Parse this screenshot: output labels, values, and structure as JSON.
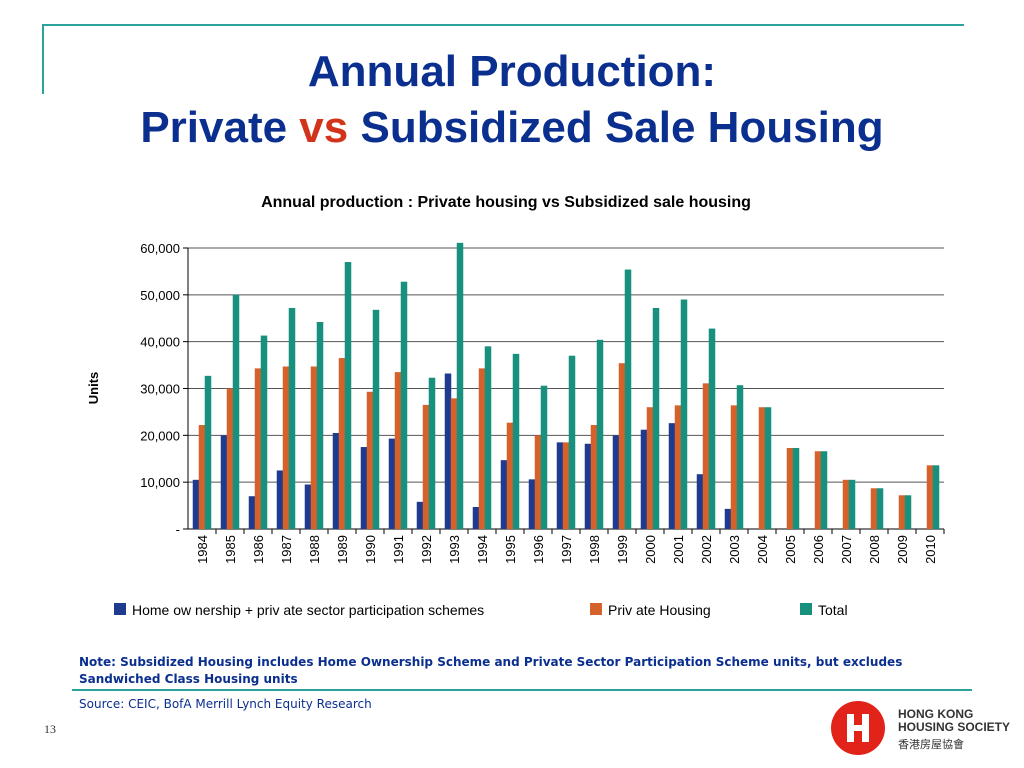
{
  "slide": {
    "title_line1": "Annual Production:",
    "title_line2_a": "Private ",
    "title_line2_vs": "vs",
    "title_line2_b": " Subsidized Sale Housing",
    "note": "Note: Subsidized Housing includes Home Ownership Scheme and Private Sector Participation Scheme units, but excludes Sandwiched Class Housing units",
    "source": "Source: CEIC, BofA Merrill Lynch Equity Research",
    "page_number": "13",
    "logo_line1": "HONG KONG",
    "logo_line2": "HOUSING SOCIETY",
    "logo_chinese": "香港房屋協會"
  },
  "colors": {
    "title": "#0b2f8f",
    "vs": "#d2341b",
    "accent_line": "#2aa39a",
    "home_ownership": "#1f3b8f",
    "private": "#d4622a",
    "total": "#17907d",
    "logo_red": "#e2231a"
  },
  "chart_data": {
    "type": "bar",
    "title": "Annual production : Private housing vs Subsidized sale housing",
    "ylabel": "Units",
    "xlabel": "",
    "ylim": [
      0,
      60000
    ],
    "yticks": [
      0,
      10000,
      20000,
      30000,
      40000,
      50000,
      60000
    ],
    "ytick_labels": [
      "-",
      "10,000",
      "20,000",
      "30,000",
      "40,000",
      "50,000",
      "60,000"
    ],
    "grid": true,
    "legend_position": "bottom",
    "categories": [
      "1984",
      "1985",
      "1986",
      "1987",
      "1988",
      "1989",
      "1990",
      "1991",
      "1992",
      "1993",
      "1994",
      "1995",
      "1996",
      "1997",
      "1998",
      "1999",
      "2000",
      "2001",
      "2002",
      "2003",
      "2004",
      "2005",
      "2006",
      "2007",
      "2008",
      "2009",
      "2010"
    ],
    "series": [
      {
        "name": "Home ow nership + priv ate sector participation schemes",
        "color": "#1f3b8f",
        "values": [
          10500,
          20000,
          7000,
          12500,
          9500,
          20500,
          17500,
          19300,
          5800,
          33200,
          4700,
          14700,
          10600,
          18500,
          18200,
          20000,
          21200,
          22600,
          11700,
          4300,
          0,
          0,
          0,
          0,
          0,
          0,
          0
        ]
      },
      {
        "name": "Priv ate Housing",
        "color": "#d4622a",
        "values": [
          22200,
          30000,
          34300,
          34700,
          34700,
          36500,
          29300,
          33500,
          26500,
          27900,
          34300,
          22700,
          20000,
          18500,
          22200,
          35400,
          26000,
          26400,
          31100,
          26400,
          26000,
          17300,
          16600,
          10500,
          8700,
          7200,
          13600
        ]
      },
      {
        "name": "Total",
        "color": "#17907d",
        "values": [
          32700,
          50000,
          41300,
          47200,
          44200,
          57000,
          46800,
          52800,
          32300,
          61100,
          39000,
          37400,
          30600,
          37000,
          40400,
          55400,
          47200,
          49000,
          42800,
          30700,
          26000,
          17300,
          16600,
          10500,
          8700,
          7200,
          13600
        ]
      }
    ]
  }
}
